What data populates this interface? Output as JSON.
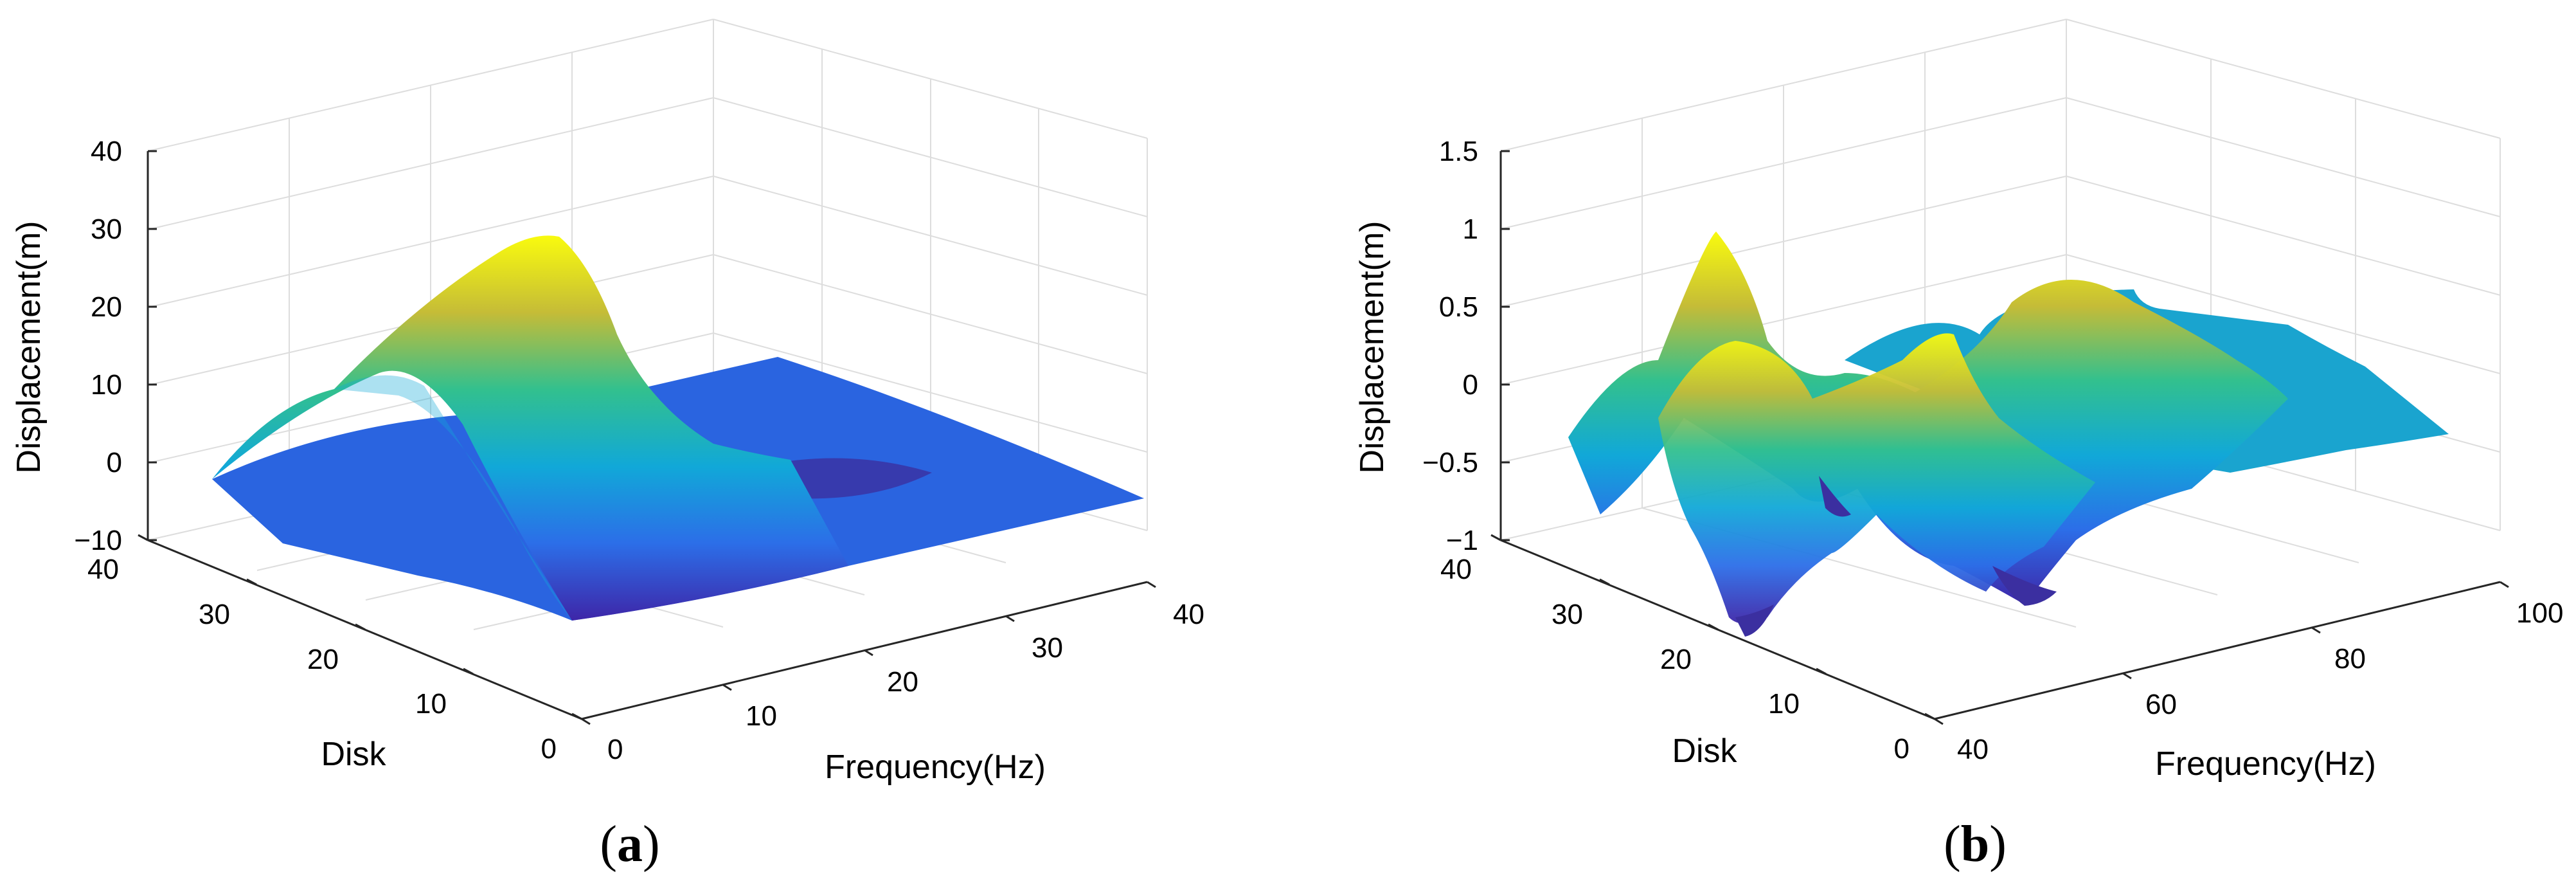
{
  "chart_data": [
    {
      "type": "surface",
      "panel": "a",
      "panel_label": "a",
      "title": "",
      "xlabel": "Frequency(Hz)",
      "ylabel": "Disk",
      "zlabel": "Displacement(m)",
      "x_ticks": [
        "0",
        "10",
        "20",
        "30",
        "40"
      ],
      "y_ticks": [
        "0",
        "10",
        "20",
        "30",
        "40"
      ],
      "z_ticks": [
        "−10",
        "0",
        "10",
        "20",
        "30",
        "40"
      ],
      "xlim": [
        0,
        40
      ],
      "ylim": [
        0,
        40
      ],
      "zlim": [
        -10,
        40
      ],
      "grid": true,
      "colormap": "parula",
      "description_peak": {
        "frequency": 5,
        "disk": 20,
        "displacement": 30
      },
      "surface_samples": {
        "frequency": [
          0,
          10,
          20,
          30,
          40
        ],
        "disk": [
          0,
          10,
          20,
          30,
          40
        ],
        "displacement_rows_by_disk": [
          [
            -2,
            14,
            3,
            1,
            0
          ],
          [
            -3,
            24,
            2,
            -2,
            -1
          ],
          [
            -4,
            30,
            0,
            -6,
            -2
          ],
          [
            -3,
            24,
            2,
            -2,
            -1
          ],
          [
            -2,
            14,
            3,
            1,
            0
          ]
        ]
      }
    },
    {
      "type": "surface",
      "panel": "b",
      "panel_label": "b",
      "title": "",
      "xlabel": "Frequency(Hz)",
      "ylabel": "Disk",
      "zlabel": "Displacement(m)",
      "x_ticks": [
        "40",
        "60",
        "80",
        "100"
      ],
      "y_ticks": [
        "0",
        "10",
        "20",
        "30",
        "40"
      ],
      "z_ticks": [
        "−1",
        "−0.5",
        "0",
        "0.5",
        "1",
        "1.5"
      ],
      "xlim": [
        40,
        100
      ],
      "ylim": [
        0,
        40
      ],
      "zlim": [
        -1,
        1.5
      ],
      "grid": true,
      "colormap": "parula",
      "surface_samples": {
        "frequency": [
          40,
          55,
          70,
          85,
          100
        ],
        "disk": [
          0,
          10,
          20,
          30,
          40
        ],
        "displacement_rows_by_disk": [
          [
            -0.4,
            0.9,
            -0.6,
            0.3,
            0.1
          ],
          [
            -0.6,
            0.5,
            -0.9,
            0.2,
            0.0
          ],
          [
            -0.9,
            0.2,
            -0.8,
            0.1,
            -0.2
          ],
          [
            -0.5,
            1.1,
            -0.4,
            0.5,
            0.1
          ],
          [
            -0.3,
            0.6,
            -0.2,
            0.2,
            -0.1
          ]
        ]
      }
    }
  ]
}
